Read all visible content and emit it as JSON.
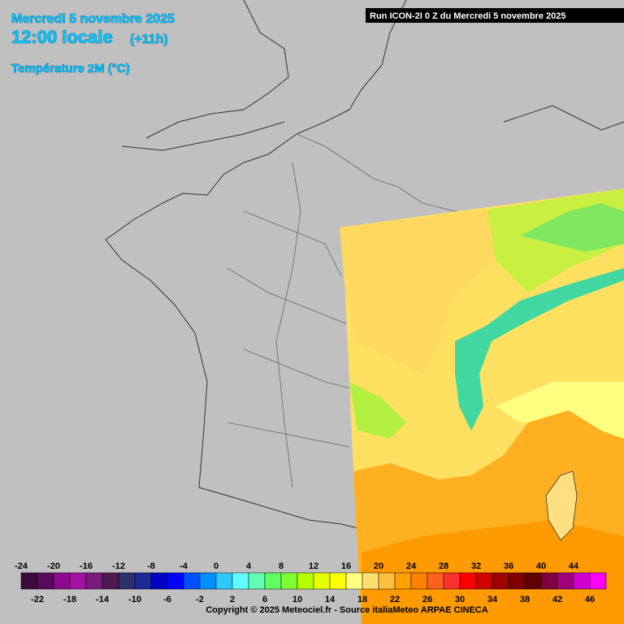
{
  "header": {
    "date": "Mercredi 5 novembre 2025",
    "time": "12:00 locale",
    "offset": "(+11h)",
    "parameter": "Température 2M (°C)",
    "run": "Run ICON-2I 0 Z du Mercredi 5 novembre 2025"
  },
  "legend": {
    "values": [
      -24,
      -22,
      -20,
      -18,
      -16,
      -14,
      -12,
      -10,
      -8,
      -6,
      -4,
      -2,
      0,
      2,
      4,
      6,
      8,
      10,
      12,
      14,
      16,
      18,
      20,
      22,
      24,
      26,
      28,
      30,
      32,
      34,
      36,
      38,
      40,
      42,
      44,
      46
    ],
    "colors": [
      "#3c0a3c",
      "#5a0a5a",
      "#8c0a8c",
      "#a014a0",
      "#7a1a7a",
      "#501a50",
      "#2e306e",
      "#1a2a96",
      "#0000c8",
      "#0000ff",
      "#0050ff",
      "#0090ff",
      "#30c8ff",
      "#60ffff",
      "#60ffb4",
      "#60ff60",
      "#80ff30",
      "#b4ff00",
      "#e6ff00",
      "#ffff00",
      "#ffff80",
      "#ffe070",
      "#ffc040",
      "#ffa000",
      "#ff8000",
      "#ff6020",
      "#ff3030",
      "#ff0000",
      "#d00000",
      "#a00000",
      "#800000",
      "#600000",
      "#800040",
      "#a00080",
      "#d000d0",
      "#ff00ff"
    ]
  },
  "footer": {
    "copyright": "Copyright © 2025 Meteociel.fr - Source italiaMeteo ARPAE CINECA"
  }
}
